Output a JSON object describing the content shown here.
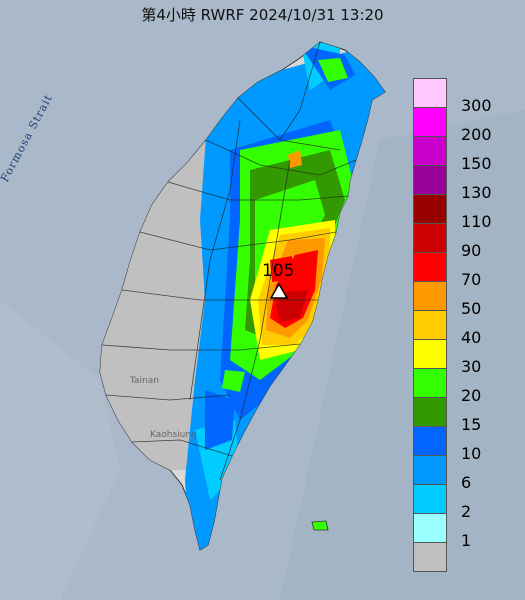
{
  "title": "第4小時  RWRF 2024/10/31 13:20",
  "labels": {
    "strait": "Formosa Strait",
    "city_tainan": "Tainan",
    "city_kaohsiung": "Kaohsiung"
  },
  "peak": {
    "label": "105",
    "marker": "triangle-marker-icon"
  },
  "legend": [
    {
      "label": "300",
      "color": "#ffc8ff"
    },
    {
      "label": "200",
      "color": "#ff00ff"
    },
    {
      "label": "150",
      "color": "#cc00cc"
    },
    {
      "label": "130",
      "color": "#99009a"
    },
    {
      "label": "110",
      "color": "#990000"
    },
    {
      "label": "90",
      "color": "#cc0000"
    },
    {
      "label": "70",
      "color": "#ff0000"
    },
    {
      "label": "50",
      "color": "#ff9900"
    },
    {
      "label": "40",
      "color": "#ffcc00"
    },
    {
      "label": "30",
      "color": "#ffff00"
    },
    {
      "label": "20",
      "color": "#33ff00"
    },
    {
      "label": "15",
      "color": "#339900"
    },
    {
      "label": "10",
      "color": "#0066ff"
    },
    {
      "label": "6",
      "color": "#0099ff"
    },
    {
      "label": "2",
      "color": "#00ccff"
    },
    {
      "label": "1",
      "color": "#99ffff"
    },
    {
      "label": "",
      "color": "#c0c0c0"
    }
  ]
}
